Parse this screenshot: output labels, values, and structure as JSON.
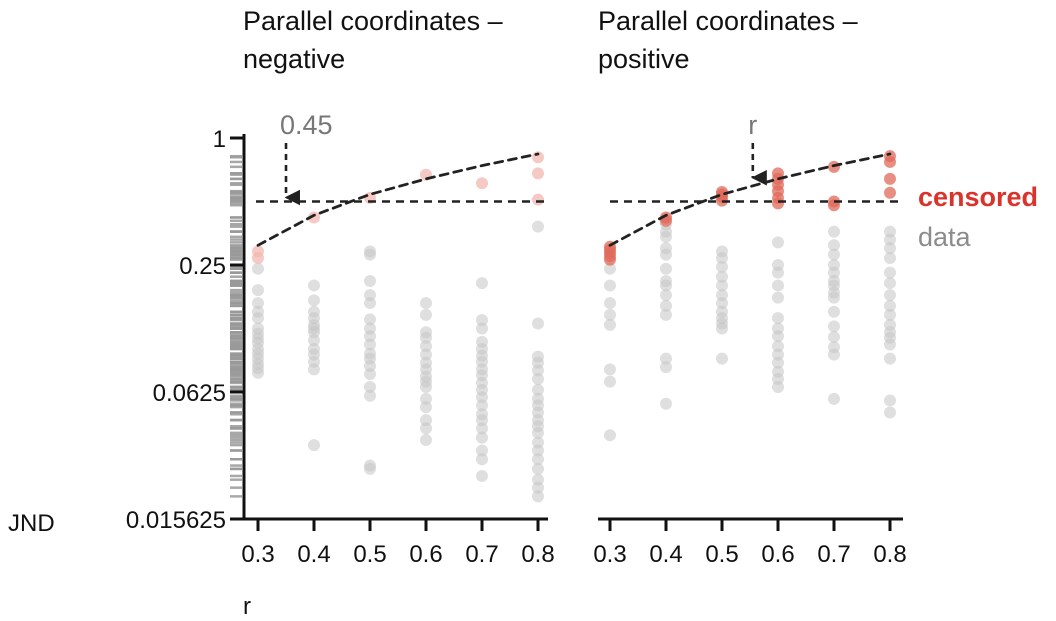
{
  "chart_data": [
    {
      "type": "scatter",
      "title_lines": [
        "Parallel coordinates –",
        "negative"
      ],
      "xlabel": "r",
      "ylabel": "JND",
      "x_ticks": [
        "0.3",
        "0.4",
        "0.5",
        "0.6",
        "0.7",
        "0.8"
      ],
      "y_ticks": [
        "1",
        "0.25",
        "0.0625",
        "0.015625"
      ],
      "y_scale": "log2",
      "ylim": [
        0.015625,
        1
      ],
      "xlim": [
        0.28,
        0.82
      ],
      "grid": false,
      "annotation": {
        "text": "0.45",
        "x": 0.35,
        "points_to_y": 0.5
      },
      "censor_threshold": 0.5,
      "fit_curve": {
        "style": "dashed",
        "x": [
          0.3,
          0.4,
          0.5,
          0.6,
          0.7,
          0.8
        ],
        "y": [
          0.31,
          0.43,
          0.54,
          0.64,
          0.74,
          0.84
        ]
      },
      "series": [
        {
          "name": "censored",
          "color": "#f2b8b0",
          "points": [
            [
              0.3,
              0.29
            ],
            [
              0.3,
              0.27
            ],
            [
              0.4,
              0.42
            ],
            [
              0.5,
              0.52
            ],
            [
              0.6,
              0.67
            ],
            [
              0.7,
              0.61
            ],
            [
              0.8,
              0.81
            ],
            [
              0.8,
              0.68
            ],
            [
              0.8,
              0.51
            ]
          ]
        },
        {
          "name": "data",
          "color": "#c4c4c4",
          "points": [
            [
              0.3,
              0.24
            ],
            [
              0.3,
              0.19
            ],
            [
              0.3,
              0.165
            ],
            [
              0.3,
              0.15
            ],
            [
              0.3,
              0.14
            ],
            [
              0.3,
              0.125
            ],
            [
              0.3,
              0.118
            ],
            [
              0.3,
              0.112
            ],
            [
              0.3,
              0.107
            ],
            [
              0.3,
              0.1
            ],
            [
              0.3,
              0.095
            ],
            [
              0.3,
              0.09
            ],
            [
              0.3,
              0.085
            ],
            [
              0.3,
              0.081
            ],
            [
              0.3,
              0.077
            ],
            [
              0.4,
              0.2
            ],
            [
              0.4,
              0.17
            ],
            [
              0.4,
              0.15
            ],
            [
              0.4,
              0.14
            ],
            [
              0.4,
              0.13
            ],
            [
              0.4,
              0.125
            ],
            [
              0.4,
              0.12
            ],
            [
              0.4,
              0.11
            ],
            [
              0.4,
              0.1
            ],
            [
              0.4,
              0.094
            ],
            [
              0.4,
              0.087
            ],
            [
              0.4,
              0.08
            ],
            [
              0.4,
              0.035
            ],
            [
              0.5,
              0.29
            ],
            [
              0.5,
              0.28
            ],
            [
              0.5,
              0.21
            ],
            [
              0.5,
              0.18
            ],
            [
              0.5,
              0.165
            ],
            [
              0.5,
              0.138
            ],
            [
              0.5,
              0.125
            ],
            [
              0.5,
              0.115
            ],
            [
              0.5,
              0.105
            ],
            [
              0.5,
              0.095
            ],
            [
              0.5,
              0.09
            ],
            [
              0.5,
              0.083
            ],
            [
              0.5,
              0.076
            ],
            [
              0.5,
              0.066
            ],
            [
              0.5,
              0.06
            ],
            [
              0.5,
              0.028
            ],
            [
              0.5,
              0.027
            ],
            [
              0.6,
              0.165
            ],
            [
              0.6,
              0.145
            ],
            [
              0.6,
              0.12
            ],
            [
              0.6,
              0.113
            ],
            [
              0.6,
              0.103
            ],
            [
              0.6,
              0.094
            ],
            [
              0.6,
              0.086
            ],
            [
              0.6,
              0.08
            ],
            [
              0.6,
              0.074
            ],
            [
              0.6,
              0.07
            ],
            [
              0.6,
              0.066
            ],
            [
              0.6,
              0.058
            ],
            [
              0.6,
              0.053
            ],
            [
              0.6,
              0.046
            ],
            [
              0.6,
              0.042
            ],
            [
              0.6,
              0.037
            ],
            [
              0.7,
              0.205
            ],
            [
              0.7,
              0.137
            ],
            [
              0.7,
              0.125
            ],
            [
              0.7,
              0.108
            ],
            [
              0.7,
              0.1
            ],
            [
              0.7,
              0.093
            ],
            [
              0.7,
              0.087
            ],
            [
              0.7,
              0.08
            ],
            [
              0.7,
              0.075
            ],
            [
              0.7,
              0.069
            ],
            [
              0.7,
              0.064
            ],
            [
              0.7,
              0.059
            ],
            [
              0.7,
              0.054
            ],
            [
              0.7,
              0.049
            ],
            [
              0.7,
              0.046
            ],
            [
              0.7,
              0.042
            ],
            [
              0.7,
              0.038
            ],
            [
              0.7,
              0.033
            ],
            [
              0.7,
              0.03
            ],
            [
              0.7,
              0.025
            ],
            [
              0.8,
              0.38
            ],
            [
              0.8,
              0.132
            ],
            [
              0.8,
              0.092
            ],
            [
              0.8,
              0.086
            ],
            [
              0.8,
              0.079
            ],
            [
              0.8,
              0.072
            ],
            [
              0.8,
              0.064
            ],
            [
              0.8,
              0.058
            ],
            [
              0.8,
              0.054
            ],
            [
              0.8,
              0.05
            ],
            [
              0.8,
              0.046
            ],
            [
              0.8,
              0.043
            ],
            [
              0.8,
              0.04
            ],
            [
              0.8,
              0.036
            ],
            [
              0.8,
              0.033
            ],
            [
              0.8,
              0.03
            ],
            [
              0.8,
              0.027
            ],
            [
              0.8,
              0.024
            ],
            [
              0.8,
              0.022
            ],
            [
              0.8,
              0.02
            ]
          ]
        }
      ]
    },
    {
      "type": "scatter",
      "title_lines": [
        "Parallel coordinates –",
        "positive"
      ],
      "xlabel": "",
      "x_ticks": [
        "0.3",
        "0.4",
        "0.5",
        "0.6",
        "0.7",
        "0.8"
      ],
      "y_scale": "log2",
      "ylim": [
        0.015625,
        1
      ],
      "xlim": [
        0.28,
        0.82
      ],
      "grid": false,
      "annotation": {
        "text": "r",
        "x": 0.555,
        "points_to_y": 0.62
      },
      "censor_threshold": 0.5,
      "fit_curve": {
        "style": "dashed",
        "x": [
          0.3,
          0.4,
          0.5,
          0.6,
          0.7,
          0.8
        ],
        "y": [
          0.31,
          0.43,
          0.54,
          0.64,
          0.74,
          0.84
        ]
      },
      "series": [
        {
          "name": "censored",
          "color": "#e06a5a",
          "points": [
            [
              0.3,
              0.305
            ],
            [
              0.3,
              0.295
            ],
            [
              0.3,
              0.285
            ],
            [
              0.3,
              0.275
            ],
            [
              0.3,
              0.265
            ],
            [
              0.4,
              0.42
            ],
            [
              0.4,
              0.405
            ],
            [
              0.5,
              0.555
            ],
            [
              0.5,
              0.54
            ],
            [
              0.5,
              0.525
            ],
            [
              0.5,
              0.505
            ],
            [
              0.6,
              0.68
            ],
            [
              0.6,
              0.64
            ],
            [
              0.6,
              0.6
            ],
            [
              0.6,
              0.56
            ],
            [
              0.6,
              0.52
            ],
            [
              0.6,
              0.49
            ],
            [
              0.7,
              0.73
            ],
            [
              0.7,
              0.5
            ],
            [
              0.7,
              0.48
            ],
            [
              0.8,
              0.82
            ],
            [
              0.8,
              0.77
            ],
            [
              0.8,
              0.64
            ],
            [
              0.8,
              0.55
            ]
          ]
        },
        {
          "name": "data",
          "color": "#c4c4c4",
          "points": [
            [
              0.3,
              0.24
            ],
            [
              0.3,
              0.2
            ],
            [
              0.3,
              0.165
            ],
            [
              0.3,
              0.145
            ],
            [
              0.3,
              0.13
            ],
            [
              0.3,
              0.08
            ],
            [
              0.3,
              0.07
            ],
            [
              0.3,
              0.039
            ],
            [
              0.4,
              0.39
            ],
            [
              0.4,
              0.36
            ],
            [
              0.4,
              0.34
            ],
            [
              0.4,
              0.3
            ],
            [
              0.4,
              0.28
            ],
            [
              0.4,
              0.24
            ],
            [
              0.4,
              0.21
            ],
            [
              0.4,
              0.2
            ],
            [
              0.4,
              0.18
            ],
            [
              0.4,
              0.16
            ],
            [
              0.4,
              0.145
            ],
            [
              0.4,
              0.09
            ],
            [
              0.4,
              0.082
            ],
            [
              0.4,
              0.055
            ],
            [
              0.5,
              0.29
            ],
            [
              0.5,
              0.27
            ],
            [
              0.5,
              0.245
            ],
            [
              0.5,
              0.22
            ],
            [
              0.5,
              0.2
            ],
            [
              0.5,
              0.18
            ],
            [
              0.5,
              0.165
            ],
            [
              0.5,
              0.15
            ],
            [
              0.5,
              0.14
            ],
            [
              0.5,
              0.132
            ],
            [
              0.5,
              0.125
            ],
            [
              0.5,
              0.09
            ],
            [
              0.6,
              0.32
            ],
            [
              0.6,
              0.25
            ],
            [
              0.6,
              0.23
            ],
            [
              0.6,
              0.2
            ],
            [
              0.6,
              0.175
            ],
            [
              0.6,
              0.14
            ],
            [
              0.6,
              0.125
            ],
            [
              0.6,
              0.115
            ],
            [
              0.6,
              0.103
            ],
            [
              0.6,
              0.094
            ],
            [
              0.6,
              0.086
            ],
            [
              0.6,
              0.078
            ],
            [
              0.6,
              0.072
            ],
            [
              0.6,
              0.066
            ],
            [
              0.7,
              0.36
            ],
            [
              0.7,
              0.31
            ],
            [
              0.7,
              0.28
            ],
            [
              0.7,
              0.25
            ],
            [
              0.7,
              0.23
            ],
            [
              0.7,
              0.21
            ],
            [
              0.7,
              0.2
            ],
            [
              0.7,
              0.185
            ],
            [
              0.7,
              0.175
            ],
            [
              0.7,
              0.15
            ],
            [
              0.7,
              0.128
            ],
            [
              0.7,
              0.114
            ],
            [
              0.7,
              0.102
            ],
            [
              0.7,
              0.094
            ],
            [
              0.7,
              0.058
            ],
            [
              0.8,
              0.36
            ],
            [
              0.8,
              0.33
            ],
            [
              0.8,
              0.3
            ],
            [
              0.8,
              0.27
            ],
            [
              0.8,
              0.23
            ],
            [
              0.8,
              0.205
            ],
            [
              0.8,
              0.18
            ],
            [
              0.8,
              0.16
            ],
            [
              0.8,
              0.145
            ],
            [
              0.8,
              0.13
            ],
            [
              0.8,
              0.12
            ],
            [
              0.8,
              0.113
            ],
            [
              0.8,
              0.105
            ],
            [
              0.8,
              0.09
            ],
            [
              0.8,
              0.057
            ],
            [
              0.8,
              0.05
            ]
          ]
        }
      ]
    }
  ],
  "legend": {
    "placement": "right",
    "items": [
      {
        "label": "censored",
        "color": "#d9332b"
      },
      {
        "label": "data",
        "color": "#8c8c8c"
      }
    ]
  },
  "colors": {
    "axis": "#111111",
    "annotation": "#777777",
    "rug": "#999999",
    "curve": "#222222"
  }
}
